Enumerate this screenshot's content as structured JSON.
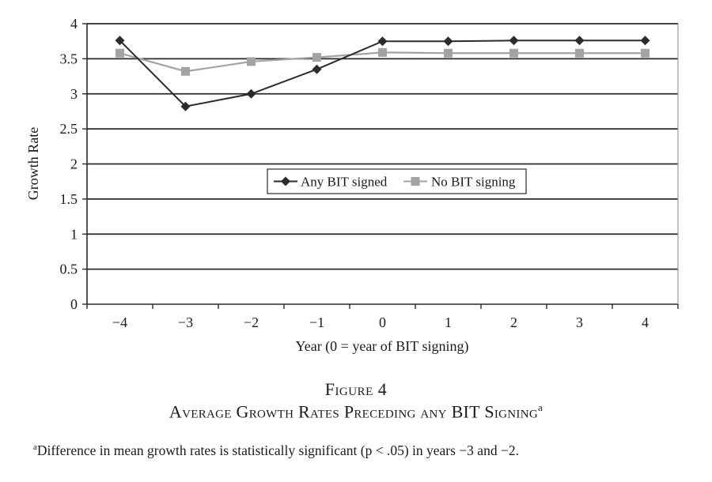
{
  "figure": {
    "number_label": "Figure 4",
    "title": "Average Growth Rates Preceding any BIT Signing",
    "title_marker": "a",
    "footnote_marker": "a",
    "footnote_text": "Difference in mean growth rates is statistically significant (p < .05) in years −3 and −2."
  },
  "chart_data": {
    "type": "line",
    "title": "",
    "xlabel": "Year (0 = year of BIT signing)",
    "ylabel": "Growth Rate",
    "categories": [
      "−4",
      "−3",
      "−2",
      "−1",
      "0",
      "1",
      "2",
      "3",
      "4"
    ],
    "ylim": [
      0,
      4
    ],
    "yticks": [
      "0",
      "0.5",
      "1",
      "1.5",
      "2",
      "2.5",
      "3",
      "3.5",
      "4"
    ],
    "grid": true,
    "legend_position": "center",
    "series": [
      {
        "name": "Any BIT signed",
        "values": [
          3.76,
          2.82,
          3.0,
          3.35,
          3.75,
          3.75,
          3.76,
          3.76,
          3.76
        ],
        "color": "#2b2b2b",
        "marker": "diamond"
      },
      {
        "name": "No BIT signing",
        "values": [
          3.58,
          3.32,
          3.46,
          3.52,
          3.59,
          3.58,
          3.58,
          3.58,
          3.58
        ],
        "color": "#a3a3a3",
        "marker": "square"
      }
    ]
  }
}
